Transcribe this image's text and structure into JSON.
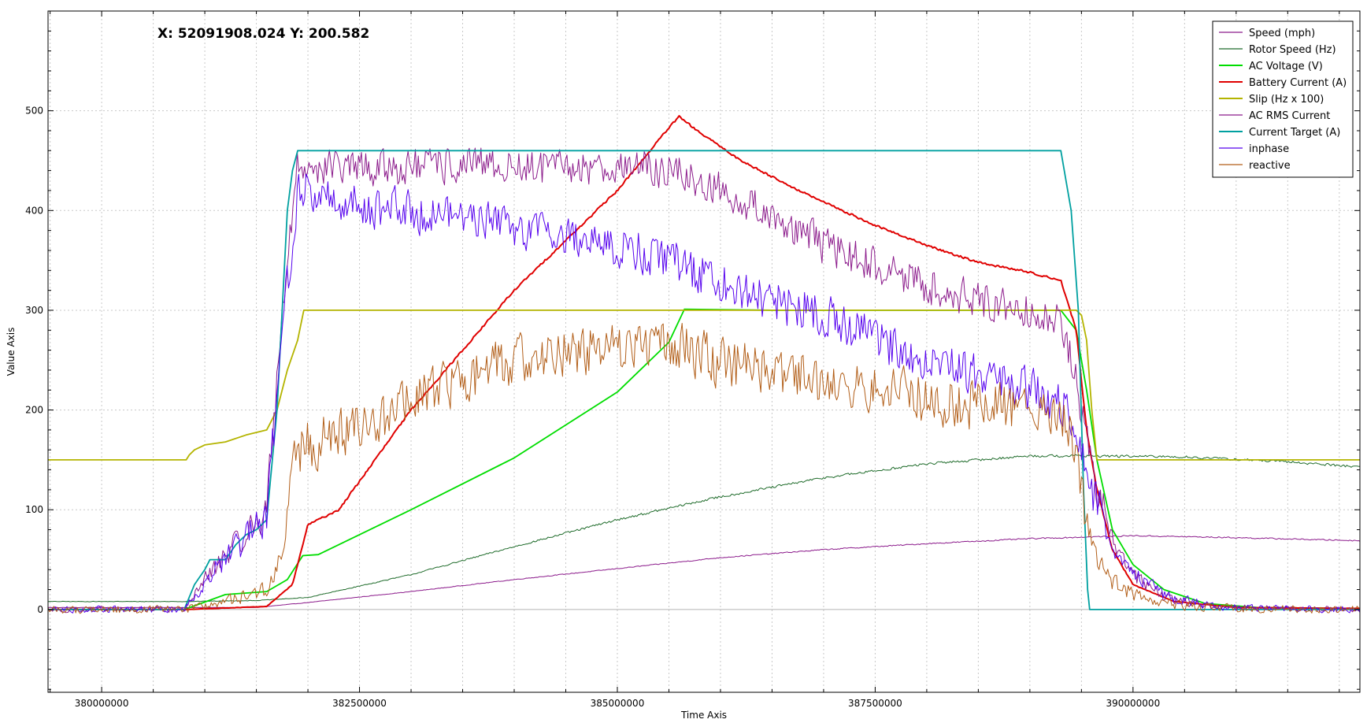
{
  "cursor_readout": "X: 52091908.024 Y: 200.582",
  "chart_data": {
    "type": "line",
    "title": "",
    "xlabel": "Time Axis",
    "ylabel": "Value Axis",
    "xlim": [
      379480000,
      392200000
    ],
    "ylim": [
      -83,
      600
    ],
    "x_ticks": [
      380000000,
      382500000,
      385000000,
      387500000,
      390000000
    ],
    "x_tick_labels": [
      "380000000",
      "382500000",
      "385000000",
      "387500000",
      "390000000"
    ],
    "y_ticks": [
      0,
      100,
      200,
      300,
      400,
      500
    ],
    "y_tick_labels": [
      "0",
      "100",
      "200",
      "300",
      "400",
      "500"
    ],
    "grid": true,
    "legend_position": "top-right",
    "series": [
      {
        "name": "Speed (mph)",
        "color": "#8b1a8b",
        "width": 1,
        "noise": 1,
        "points": [
          [
            379480000,
            2
          ],
          [
            381500000,
            2
          ],
          [
            382000000,
            7
          ],
          [
            383000000,
            18
          ],
          [
            384000000,
            30
          ],
          [
            385000000,
            41
          ],
          [
            386000000,
            52
          ],
          [
            387000000,
            60
          ],
          [
            388000000,
            66
          ],
          [
            389000000,
            71
          ],
          [
            390000000,
            74
          ],
          [
            391000000,
            72
          ],
          [
            392200000,
            69
          ]
        ]
      },
      {
        "name": "Rotor Speed (Hz)",
        "color": "#1e6b2a",
        "width": 1,
        "noise": 1.5,
        "points": [
          [
            379480000,
            8
          ],
          [
            380800000,
            8
          ],
          [
            381500000,
            9
          ],
          [
            382000000,
            12
          ],
          [
            383000000,
            35
          ],
          [
            384000000,
            63
          ],
          [
            385000000,
            90
          ],
          [
            386000000,
            113
          ],
          [
            387000000,
            132
          ],
          [
            388000000,
            146
          ],
          [
            389000000,
            154
          ],
          [
            389600000,
            154
          ],
          [
            390500000,
            153
          ],
          [
            391500000,
            148
          ],
          [
            392200000,
            143
          ]
        ]
      },
      {
        "name": "AC Voltage (V)",
        "color": "#00dd00",
        "width": 1.8,
        "noise": 0,
        "points": [
          [
            379480000,
            0
          ],
          [
            380800000,
            0
          ],
          [
            381200000,
            15
          ],
          [
            381600000,
            18
          ],
          [
            381800000,
            30
          ],
          [
            381950000,
            54
          ],
          [
            382100000,
            55
          ],
          [
            383000000,
            100
          ],
          [
            384000000,
            152
          ],
          [
            385000000,
            218
          ],
          [
            385500000,
            268
          ],
          [
            385650000,
            301
          ],
          [
            386500000,
            300
          ],
          [
            387500000,
            300
          ],
          [
            388500000,
            300
          ],
          [
            389300000,
            300
          ],
          [
            389450000,
            280
          ],
          [
            389550000,
            220
          ],
          [
            389650000,
            150
          ],
          [
            389800000,
            80
          ],
          [
            390000000,
            45
          ],
          [
            390300000,
            20
          ],
          [
            390700000,
            6
          ],
          [
            391200000,
            2
          ],
          [
            392200000,
            1
          ]
        ]
      },
      {
        "name": "Battery Current (A)",
        "color": "#e00000",
        "width": 2,
        "noise": 1.2,
        "points": [
          [
            379480000,
            0
          ],
          [
            380800000,
            0
          ],
          [
            381600000,
            3
          ],
          [
            381850000,
            25
          ],
          [
            382000000,
            85
          ],
          [
            382300000,
            100
          ],
          [
            383000000,
            200
          ],
          [
            383500000,
            260
          ],
          [
            384000000,
            320
          ],
          [
            384500000,
            370
          ],
          [
            385000000,
            420
          ],
          [
            385500000,
            483
          ],
          [
            385600000,
            494
          ],
          [
            385800000,
            478
          ],
          [
            386200000,
            450
          ],
          [
            386800000,
            418
          ],
          [
            387500000,
            385
          ],
          [
            388000000,
            365
          ],
          [
            388500000,
            348
          ],
          [
            389000000,
            338
          ],
          [
            389300000,
            330
          ],
          [
            389450000,
            280
          ],
          [
            389550000,
            180
          ],
          [
            389650000,
            120
          ],
          [
            389800000,
            60
          ],
          [
            390000000,
            25
          ],
          [
            390400000,
            8
          ],
          [
            391000000,
            2
          ],
          [
            392200000,
            1
          ]
        ]
      },
      {
        "name": "Slip (Hz x 100)",
        "color": "#b4b400",
        "width": 1.8,
        "noise": 0,
        "points": [
          [
            379480000,
            150
          ],
          [
            380820000,
            150
          ],
          [
            380850000,
            155
          ],
          [
            380900000,
            160
          ],
          [
            381000000,
            165
          ],
          [
            381200000,
            168
          ],
          [
            381400000,
            175
          ],
          [
            381600000,
            180
          ],
          [
            381700000,
            200
          ],
          [
            381800000,
            240
          ],
          [
            381900000,
            270
          ],
          [
            381960000,
            300
          ],
          [
            389450000,
            300
          ],
          [
            389500000,
            295
          ],
          [
            389550000,
            270
          ],
          [
            389600000,
            200
          ],
          [
            389650000,
            150
          ],
          [
            392200000,
            150
          ]
        ]
      },
      {
        "name": "AC RMS Current",
        "color": "#8b1a8b",
        "width": 1,
        "noise": 22,
        "points": [
          [
            379480000,
            0
          ],
          [
            380800000,
            0
          ],
          [
            381000000,
            30
          ],
          [
            381200000,
            55
          ],
          [
            381400000,
            75
          ],
          [
            381600000,
            100
          ],
          [
            381750000,
            300
          ],
          [
            381900000,
            445
          ],
          [
            382500000,
            442
          ],
          [
            383500000,
            445
          ],
          [
            384500000,
            442
          ],
          [
            385000000,
            445
          ],
          [
            385500000,
            440
          ],
          [
            386000000,
            420
          ],
          [
            386500000,
            395
          ],
          [
            387000000,
            365
          ],
          [
            387500000,
            345
          ],
          [
            388000000,
            325
          ],
          [
            388500000,
            310
          ],
          [
            389000000,
            300
          ],
          [
            389300000,
            290
          ],
          [
            389450000,
            230
          ],
          [
            389600000,
            140
          ],
          [
            389800000,
            70
          ],
          [
            390000000,
            35
          ],
          [
            390300000,
            12
          ],
          [
            390800000,
            2
          ],
          [
            392200000,
            0
          ]
        ]
      },
      {
        "name": "Current Target (A)",
        "color": "#00a0a0",
        "width": 1.8,
        "noise": 0,
        "points": [
          [
            379480000,
            0
          ],
          [
            380800000,
            0
          ],
          [
            380900000,
            25
          ],
          [
            381000000,
            40
          ],
          [
            381050000,
            50
          ],
          [
            381200000,
            50
          ],
          [
            381300000,
            65
          ],
          [
            381400000,
            75
          ],
          [
            381500000,
            80
          ],
          [
            381600000,
            90
          ],
          [
            381700000,
            200
          ],
          [
            381800000,
            400
          ],
          [
            381850000,
            440
          ],
          [
            381900000,
            460
          ],
          [
            389300000,
            460
          ],
          [
            389400000,
            400
          ],
          [
            389470000,
            300
          ],
          [
            389520000,
            120
          ],
          [
            389560000,
            20
          ],
          [
            389580000,
            0
          ],
          [
            392200000,
            0
          ]
        ]
      },
      {
        "name": "inphase",
        "color": "#5500ee",
        "width": 1,
        "noise": 26,
        "points": [
          [
            379480000,
            0
          ],
          [
            380800000,
            0
          ],
          [
            381000000,
            28
          ],
          [
            381200000,
            50
          ],
          [
            381400000,
            70
          ],
          [
            381600000,
            90
          ],
          [
            381750000,
            280
          ],
          [
            381900000,
            420
          ],
          [
            382500000,
            405
          ],
          [
            383500000,
            395
          ],
          [
            384000000,
            385
          ],
          [
            385000000,
            365
          ],
          [
            385500000,
            350
          ],
          [
            386000000,
            330
          ],
          [
            386500000,
            310
          ],
          [
            387000000,
            295
          ],
          [
            387500000,
            270
          ],
          [
            388000000,
            250
          ],
          [
            388500000,
            235
          ],
          [
            389000000,
            220
          ],
          [
            389300000,
            205
          ],
          [
            389450000,
            180
          ],
          [
            389600000,
            120
          ],
          [
            389800000,
            70
          ],
          [
            390000000,
            40
          ],
          [
            390300000,
            15
          ],
          [
            390800000,
            2
          ],
          [
            392200000,
            0
          ]
        ]
      },
      {
        "name": "reactive",
        "color": "#b25e18",
        "width": 1,
        "noise": 30,
        "points": [
          [
            379480000,
            0
          ],
          [
            380800000,
            0
          ],
          [
            381200000,
            8
          ],
          [
            381600000,
            20
          ],
          [
            381750000,
            50
          ],
          [
            381850000,
            150
          ],
          [
            382000000,
            165
          ],
          [
            382500000,
            180
          ],
          [
            383000000,
            210
          ],
          [
            383500000,
            230
          ],
          [
            384000000,
            250
          ],
          [
            384500000,
            260
          ],
          [
            385000000,
            262
          ],
          [
            385500000,
            268
          ],
          [
            386000000,
            248
          ],
          [
            386500000,
            238
          ],
          [
            387000000,
            230
          ],
          [
            387500000,
            222
          ],
          [
            388000000,
            212
          ],
          [
            388500000,
            205
          ],
          [
            389000000,
            200
          ],
          [
            389300000,
            195
          ],
          [
            389450000,
            160
          ],
          [
            389550000,
            90
          ],
          [
            389650000,
            50
          ],
          [
            389800000,
            30
          ],
          [
            390000000,
            15
          ],
          [
            390400000,
            5
          ],
          [
            391000000,
            1
          ],
          [
            392200000,
            0
          ]
        ]
      }
    ]
  }
}
